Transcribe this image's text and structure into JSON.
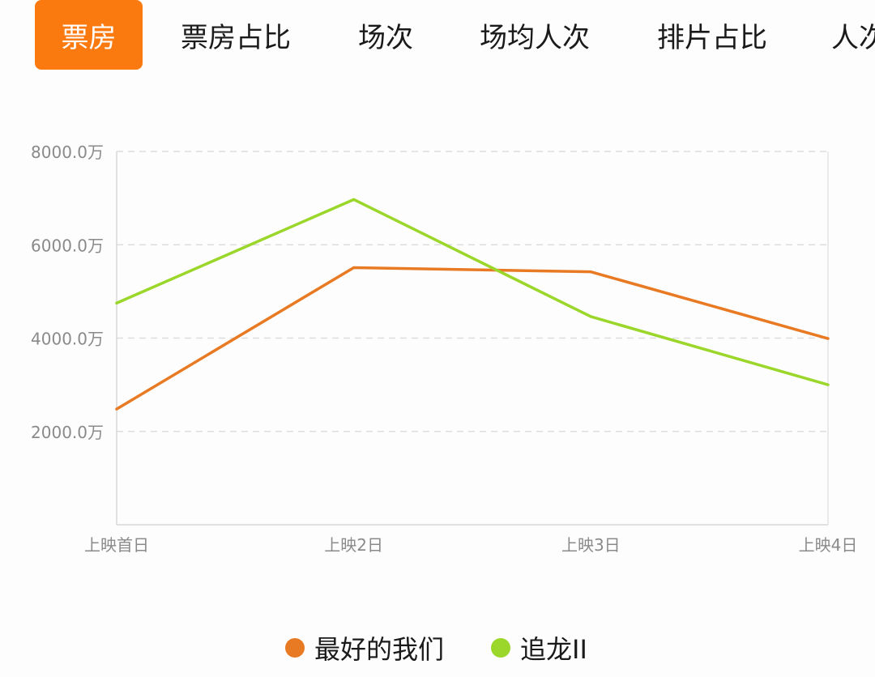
{
  "tabs": [
    {
      "label": "票房",
      "active": true
    },
    {
      "label": "票房占比",
      "active": false
    },
    {
      "label": "场次",
      "active": false
    },
    {
      "label": "场均人次",
      "active": false
    },
    {
      "label": "排片占比",
      "active": false
    },
    {
      "label": "人次",
      "active": false
    }
  ],
  "colors": {
    "accent": "#fb7a10",
    "series_1": "#e97a24",
    "series_2": "#9bd62a",
    "grid": "#dddddd",
    "axis_text": "#8a8a8a"
  },
  "chart_data": {
    "type": "line",
    "categories": [
      "上映首日",
      "上映2日",
      "上映3日",
      "上映4日"
    ],
    "series": [
      {
        "name": "最好的我们",
        "values": [
          2480,
          5510,
          5420,
          3990
        ]
      },
      {
        "name": "追龙II",
        "values": [
          4750,
          6970,
          4460,
          3000
        ]
      }
    ],
    "y_ticks": [
      2000,
      4000,
      6000,
      8000
    ],
    "y_tick_labels": [
      "2000.0万",
      "4000.0万",
      "6000.0万",
      "8000.0万"
    ],
    "ylim": [
      0,
      8000
    ],
    "grid": true,
    "legend_position": "bottom"
  }
}
